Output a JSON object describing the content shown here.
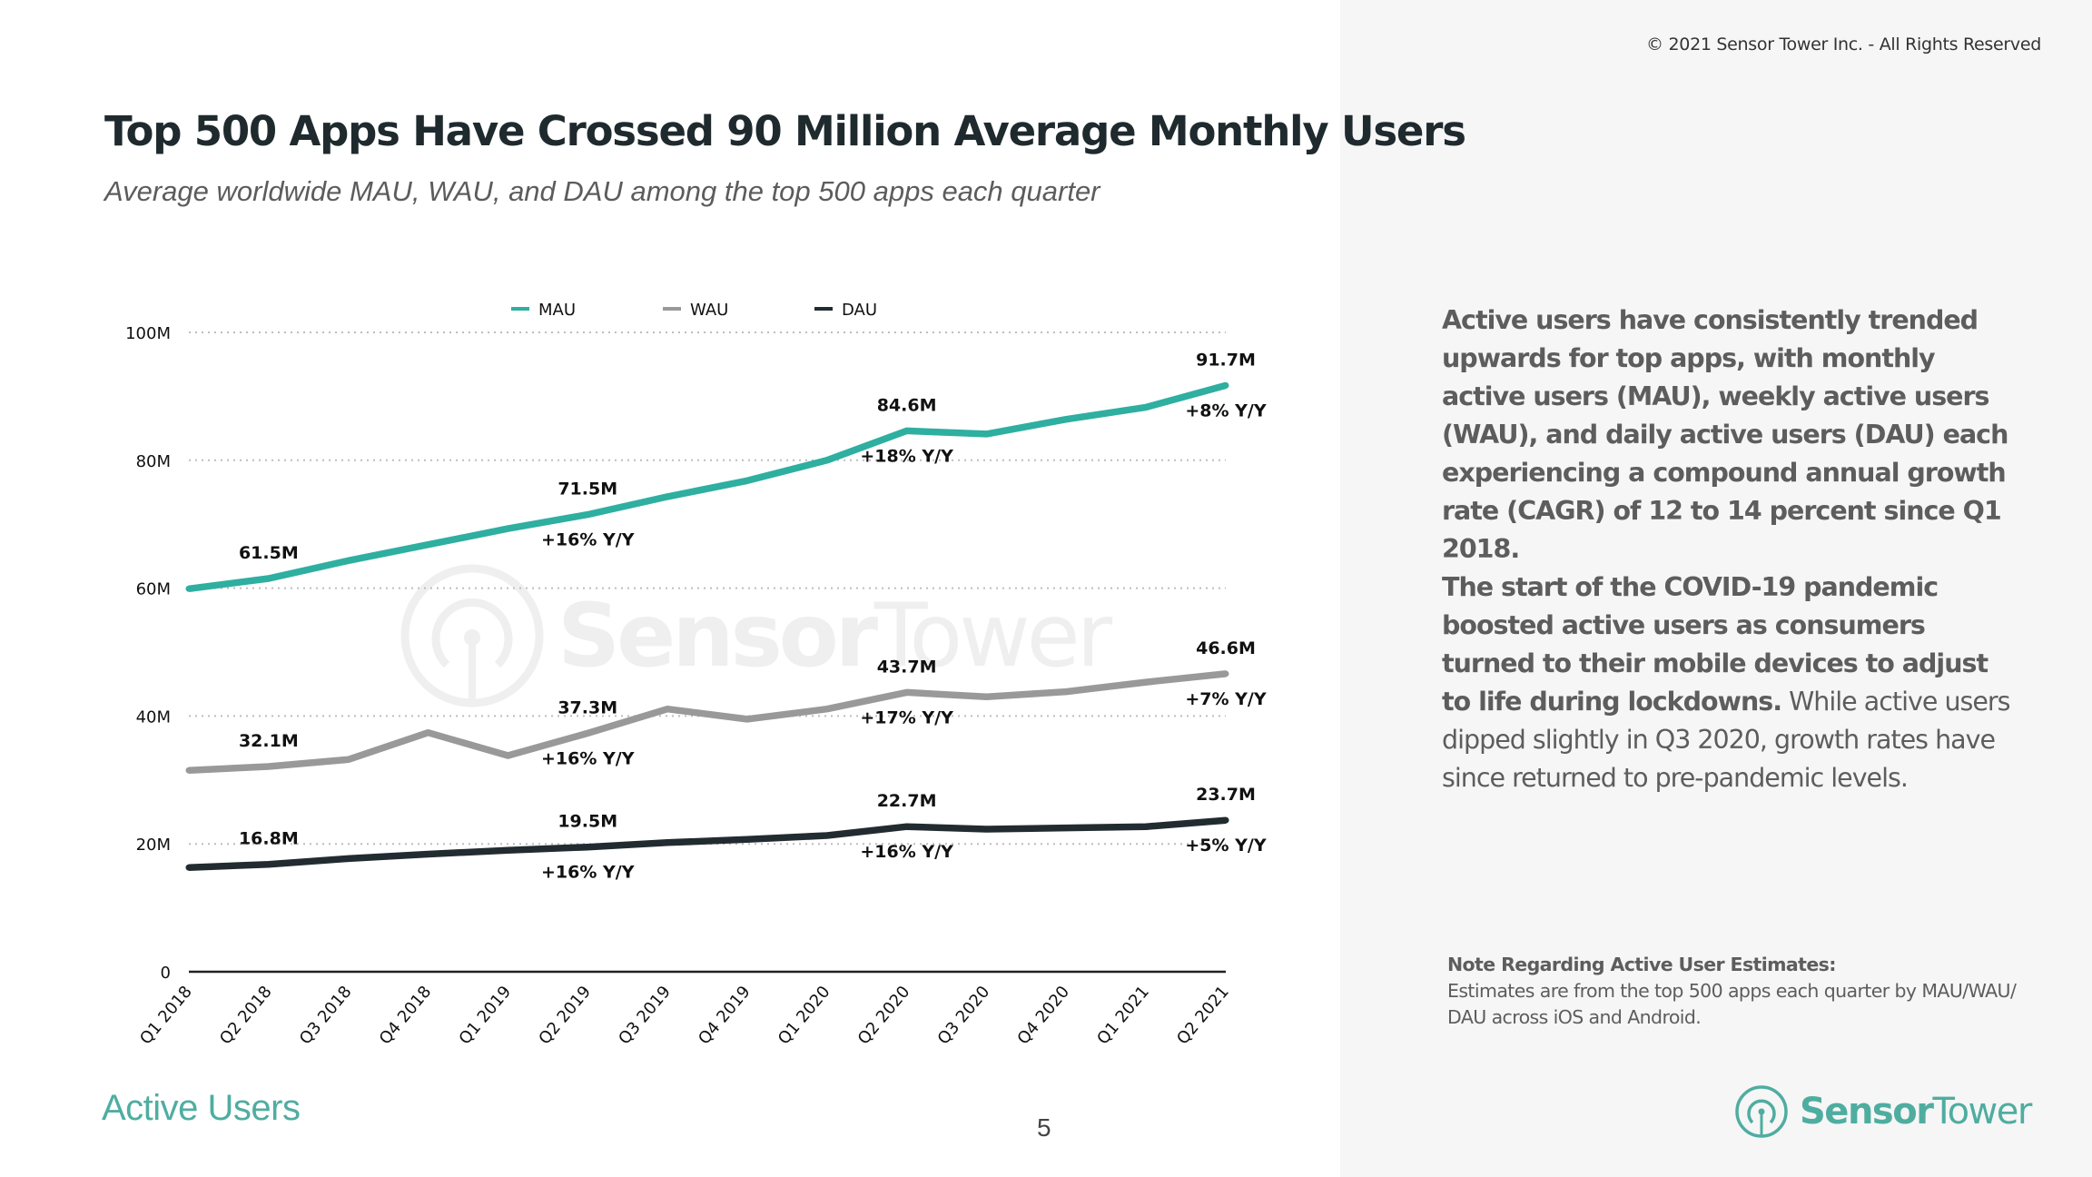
{
  "header": {
    "copyright": "© 2021 Sensor Tower Inc. - All Rights Reserved",
    "title": "Top 500 Apps Have Crossed 90 Million Average Monthly Users",
    "subtitle": "Average worldwide MAU, WAU, and DAU among the top 500 apps each quarter"
  },
  "watermark": {
    "text_bold": "Sensor",
    "text_light": "Tower",
    "icon": "sensor-tower-logo-icon"
  },
  "chart_data": {
    "type": "line",
    "title": "Top 500 Apps Have Crossed 90 Million Average Monthly Users",
    "subtitle": "Average worldwide MAU, WAU, and DAU among the top 500 apps each quarter",
    "xlabel": "",
    "ylabel": "",
    "categories": [
      "Q1 2018",
      "Q2 2018",
      "Q3 2018",
      "Q4 2018",
      "Q1 2019",
      "Q2 2019",
      "Q3 2019",
      "Q4 2019",
      "Q1 2020",
      "Q2 2020",
      "Q3 2020",
      "Q4 2020",
      "Q1 2021",
      "Q2 2021"
    ],
    "ylim": [
      0,
      100
    ],
    "yticks": [
      0,
      20,
      40,
      60,
      80,
      100
    ],
    "ytick_labels": [
      "0",
      "20M",
      "40M",
      "60M",
      "80M",
      "100M"
    ],
    "grid": "horizontal dotted",
    "legend": {
      "placement": "top-center"
    },
    "series": [
      {
        "name": "MAU",
        "color": "#2eafa0",
        "values": [
          59.9,
          61.5,
          64.3,
          66.8,
          69.3,
          71.5,
          74.3,
          76.8,
          80.0,
          84.6,
          84.1,
          86.4,
          88.3,
          91.7
        ],
        "annotations": [
          {
            "index": 1,
            "label": "61.5M"
          },
          {
            "index": 5,
            "label": "71.5M",
            "growth": "+16% Y/Y"
          },
          {
            "index": 9,
            "label": "84.6M",
            "growth": "+18% Y/Y"
          },
          {
            "index": 13,
            "label": "91.7M",
            "growth": "+8% Y/Y"
          }
        ]
      },
      {
        "name": "WAU",
        "color": "#999999",
        "values": [
          31.5,
          32.1,
          33.2,
          37.4,
          33.8,
          37.3,
          41.1,
          39.5,
          41.1,
          43.7,
          43.0,
          43.8,
          45.3,
          46.6
        ],
        "annotations": [
          {
            "index": 1,
            "label": "32.1M"
          },
          {
            "index": 5,
            "label": "37.3M",
            "growth": "+16% Y/Y"
          },
          {
            "index": 9,
            "label": "43.7M",
            "growth": "+17% Y/Y"
          },
          {
            "index": 13,
            "label": "46.6M",
            "growth": "+7% Y/Y"
          }
        ]
      },
      {
        "name": "DAU",
        "color": "#222c30",
        "values": [
          16.3,
          16.8,
          17.7,
          18.4,
          19.0,
          19.5,
          20.2,
          20.7,
          21.3,
          22.7,
          22.3,
          22.5,
          22.7,
          23.7
        ],
        "annotations": [
          {
            "index": 1,
            "label": "16.8M"
          },
          {
            "index": 5,
            "label": "19.5M",
            "growth": "+16% Y/Y"
          },
          {
            "index": 9,
            "label": "22.7M",
            "growth": "+16% Y/Y"
          },
          {
            "index": 13,
            "label": "23.7M",
            "growth": "+5% Y/Y"
          }
        ]
      }
    ]
  },
  "sidebar": {
    "paragraph1": "Active users have consistently trended upwards for top apps, with monthly active users (MAU), weekly active users (WAU), and daily active users (DAU) each experiencing a compound annual growth rate (CAGR) of 12 to 14 percent since Q1 2018.",
    "paragraph2_bold": "The start of the COVID-19 pandemic boosted active users as consumers turned to their mobile devices to adjust to life during lockdowns.",
    "paragraph2_regular": " While active users dipped slightly in Q3 2020, growth rates have since returned to pre-pandemic levels.",
    "note_title": "Note Regarding Active User Estimates:",
    "note_body": "Estimates are from the top 500 apps each quarter by MAU/WAU/ DAU across iOS and Android."
  },
  "footer": {
    "section": "Active Users",
    "page_number": "5",
    "logo_bold": "Sensor",
    "logo_light": "Tower",
    "brand_color": "#4fada0"
  }
}
